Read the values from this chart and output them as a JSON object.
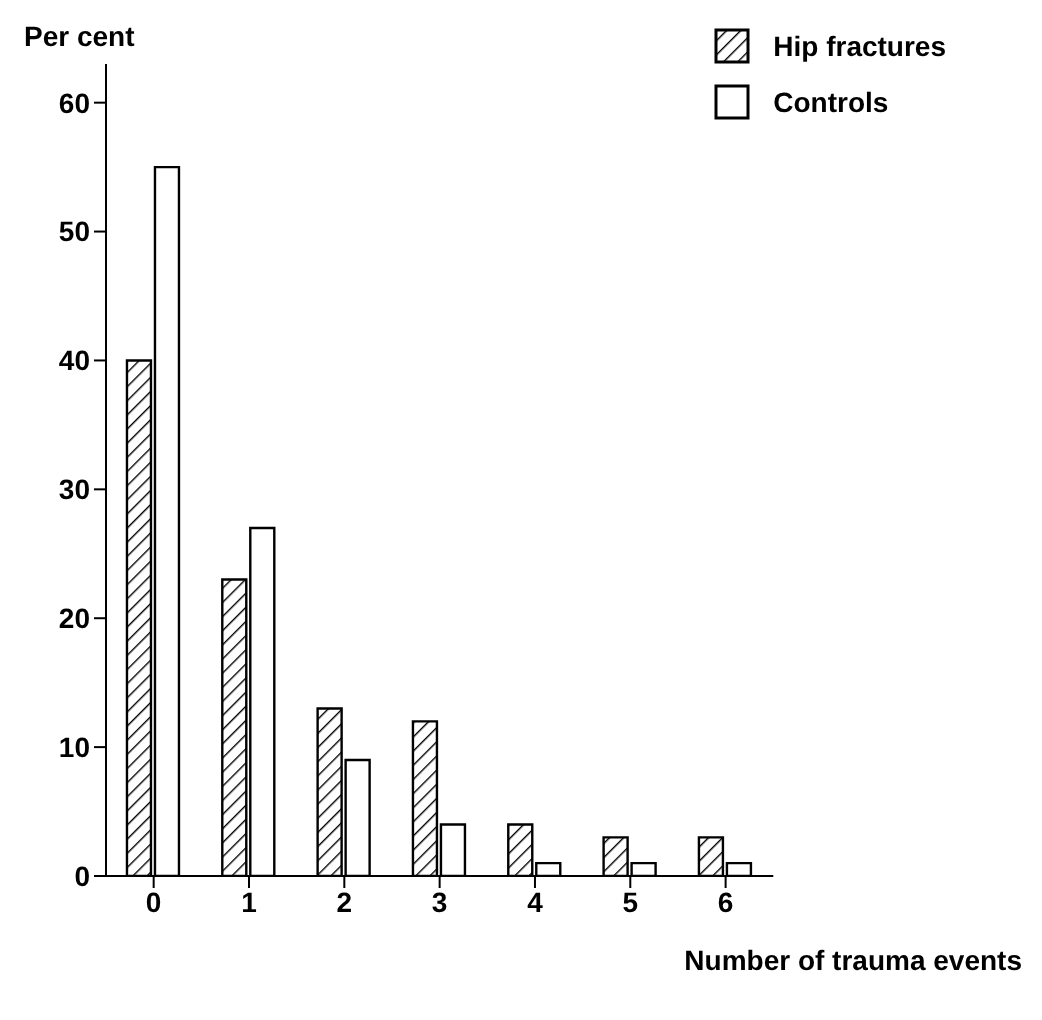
{
  "chart_data": {
    "type": "bar",
    "xlabel": "Number of trauma events",
    "ylabel": "Per cent",
    "categories": [
      "0",
      "1",
      "2",
      "3",
      "4",
      "5",
      "6"
    ],
    "series": [
      {
        "name": "Hip fractures",
        "color": "#000000",
        "values": [
          40,
          23,
          13,
          12,
          4,
          3,
          3
        ]
      },
      {
        "name": "Controls",
        "color": "#ffffff",
        "values": [
          55,
          27,
          9,
          4,
          1,
          1,
          1
        ]
      }
    ],
    "ylim": [
      0,
      63
    ],
    "yticks": [
      0,
      10,
      20,
      30,
      40,
      50,
      60
    ],
    "grid": false,
    "legend": "top right"
  }
}
